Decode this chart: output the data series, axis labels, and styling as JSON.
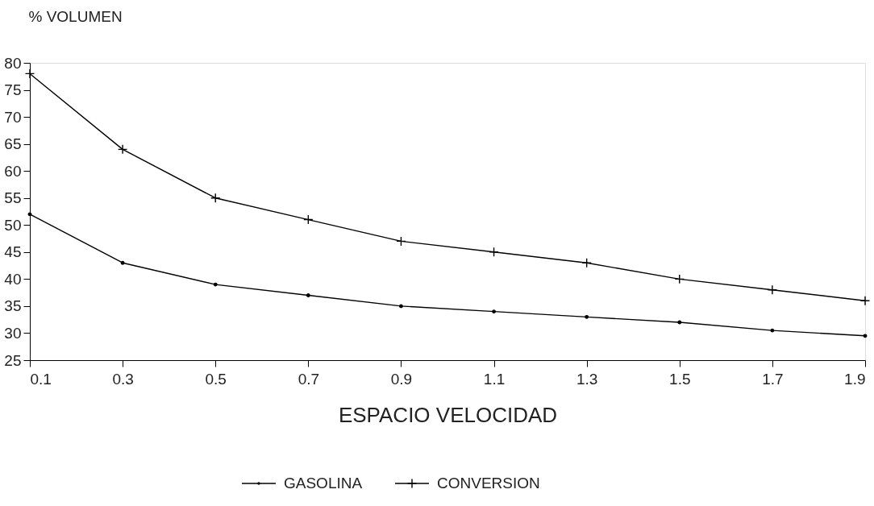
{
  "chart_data": {
    "type": "line",
    "ylabel": "% VOLUMEN",
    "xlabel": "ESPACIO VELOCIDAD",
    "x": [
      0.1,
      0.3,
      0.5,
      0.7,
      0.9,
      1.1,
      1.3,
      1.5,
      1.7,
      1.9
    ],
    "series": [
      {
        "name": "GASOLINA",
        "color": "#000000",
        "marker": "circle",
        "values": [
          52,
          43,
          39,
          37,
          35,
          34,
          33,
          32,
          30.5,
          29.5
        ]
      },
      {
        "name": "CONVERSION",
        "color": "#000000",
        "marker": "cross",
        "values": [
          78,
          64,
          55,
          51,
          47,
          45,
          43,
          40,
          38,
          36
        ]
      }
    ],
    "xlim": [
      0.1,
      1.9
    ],
    "xticks": [
      0.1,
      0.3,
      0.5,
      0.7,
      0.9,
      1.1,
      1.3,
      1.5,
      1.7,
      1.9
    ],
    "ylim": [
      25,
      80
    ],
    "yticks": [
      25,
      30,
      35,
      40,
      45,
      50,
      55,
      60,
      65,
      70,
      75,
      80
    ],
    "grid": false,
    "legend": "bottom",
    "line_style": "solid"
  }
}
